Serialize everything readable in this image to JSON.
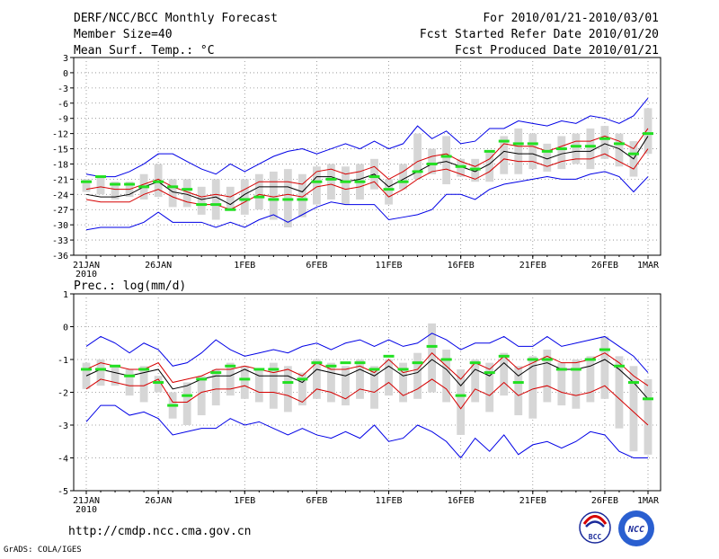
{
  "header": {
    "title": "DERF/NCC/BCC Monthly Forecast",
    "member_size": "Member Size=40",
    "variable": "Mean Surf. Temp.: °C",
    "period": "For 2010/01/21-2010/03/01",
    "start_ref": "Fcst Started Refer Date 2010/01/20",
    "produced": "Fcst Produced Date 2010/01/21"
  },
  "footer": {
    "url": "http://cmdp.ncc.cma.gov.cn",
    "grads_credit": "GrADS: COLA/IGES",
    "logo_bcc": "BCC",
    "logo_ncc": "NCC"
  },
  "colors": {
    "max_min": "#0000e6",
    "spread": "#d60000",
    "mean": "#000000",
    "box": "#d6d6d6",
    "obs": "#22e022",
    "grid": "#888888"
  },
  "chart_data": [
    {
      "id": "temperature",
      "type": "line",
      "title": "Mean Surf. Temp.: °C",
      "ylim": [
        -36,
        3
      ],
      "yticks": [
        3,
        0,
        -3,
        -6,
        -9,
        -12,
        -15,
        -18,
        -21,
        -24,
        -27,
        -30,
        -33,
        -36
      ],
      "xlim": [
        1,
        40
      ],
      "xticks": [
        {
          "day": 1,
          "label": "21JAN",
          "sub": "2010"
        },
        {
          "day": 6,
          "label": "26JAN"
        },
        {
          "day": 12,
          "label": "1FEB"
        },
        {
          "day": 17,
          "label": "6FEB"
        },
        {
          "day": 22,
          "label": "11FEB"
        },
        {
          "day": 27,
          "label": "16FEB"
        },
        {
          "day": 32,
          "label": "21FEB"
        },
        {
          "day": 37,
          "label": "26FEB"
        },
        {
          "day": 40,
          "label": "1MAR"
        }
      ],
      "x": [
        1,
        2,
        3,
        4,
        5,
        6,
        7,
        8,
        9,
        10,
        11,
        12,
        13,
        14,
        15,
        16,
        17,
        18,
        19,
        20,
        21,
        22,
        23,
        24,
        25,
        26,
        27,
        28,
        29,
        30,
        31,
        32,
        33,
        34,
        35,
        36,
        37,
        38,
        39,
        40
      ],
      "series": [
        {
          "name": "max",
          "values": [
            -20,
            -20.5,
            -20.5,
            -19.5,
            -18,
            -16,
            -16,
            -17.5,
            -19,
            -20,
            -18,
            -19.5,
            -18,
            -16.5,
            -15.5,
            -15,
            -16,
            -15,
            -14,
            -15,
            -13.5,
            -15,
            -14,
            -10.5,
            -13,
            -11.5,
            -14,
            -13.5,
            -11,
            -11,
            -9.5,
            -10,
            -10.5,
            -9.5,
            -10,
            -8.5,
            -9,
            -10,
            -8.5,
            -5
          ]
        },
        {
          "name": "upper",
          "values": [
            -23,
            -22.5,
            -23,
            -23,
            -22,
            -21,
            -22.5,
            -23.5,
            -24.5,
            -24,
            -24.5,
            -23,
            -21.5,
            -21.5,
            -21.5,
            -22,
            -19.5,
            -19,
            -20,
            -19.5,
            -18.5,
            -21,
            -19.5,
            -17.5,
            -16.5,
            -16,
            -17.5,
            -18.5,
            -17,
            -14,
            -14.5,
            -14.5,
            -15.5,
            -14.5,
            -13.5,
            -13.5,
            -12.5,
            -13.5,
            -15,
            -11
          ]
        },
        {
          "name": "mean",
          "values": [
            -24,
            -24.5,
            -24.5,
            -24,
            -22.5,
            -21.5,
            -23.5,
            -24,
            -25,
            -24.5,
            -26,
            -24,
            -22.5,
            -22.5,
            -22.5,
            -23.5,
            -20.5,
            -20.5,
            -21.5,
            -21,
            -20,
            -22.5,
            -21,
            -19.5,
            -18,
            -17.5,
            -18.5,
            -19.5,
            -18,
            -15.5,
            -16,
            -16,
            -17,
            -16,
            -15.5,
            -15.5,
            -14,
            -15,
            -17,
            -12.5
          ]
        },
        {
          "name": "lower",
          "values": [
            -25,
            -25.5,
            -25.5,
            -25.5,
            -24,
            -23,
            -24.5,
            -25.5,
            -26,
            -26,
            -27,
            -25.5,
            -24,
            -24.5,
            -24,
            -24.5,
            -22.5,
            -22,
            -23,
            -22.5,
            -21.5,
            -24.5,
            -23,
            -21,
            -19.5,
            -19,
            -20,
            -21,
            -19.5,
            -17,
            -17.5,
            -17.5,
            -18.5,
            -17.5,
            -17,
            -17,
            -16,
            -17.5,
            -19,
            -15
          ]
        },
        {
          "name": "min",
          "values": [
            -31,
            -30.5,
            -30.5,
            -30.5,
            -29.5,
            -27.5,
            -29.5,
            -29.5,
            -29.5,
            -30.5,
            -29.5,
            -30.5,
            -29,
            -28,
            -29.5,
            -28,
            -26.5,
            -25.5,
            -26,
            -26,
            -26,
            -29,
            -28.5,
            -28,
            -27,
            -24,
            -24,
            -25,
            -23,
            -22,
            -21.5,
            -21,
            -20.5,
            -21,
            -21,
            -20,
            -19.5,
            -20.5,
            -23.5,
            -20.5
          ]
        },
        {
          "name": "box_top",
          "values": [
            -21,
            -20.5,
            -21.5,
            -21.5,
            -20,
            -18,
            -21,
            -21,
            -22.5,
            -21,
            -22.5,
            -21,
            -20,
            -19.5,
            -19,
            -20,
            -18.5,
            -18,
            -18.5,
            -18,
            -17,
            -21,
            -18,
            -12,
            -15,
            -12.5,
            -17,
            -17,
            -15.5,
            -12.5,
            -11,
            -12,
            -14,
            -12.5,
            -12,
            -11,
            -10.5,
            -12,
            -13.5,
            -7
          ]
        },
        {
          "name": "box_bottom",
          "values": [
            -23.5,
            -24,
            -25,
            -24.5,
            -25,
            -24.5,
            -26.5,
            -26.5,
            -28,
            -29,
            -27,
            -28,
            -27,
            -29,
            -30.5,
            -28.5,
            -26,
            -25,
            -26,
            -25,
            -23,
            -26,
            -23,
            -21,
            -20,
            -22,
            -20.5,
            -21.5,
            -21.5,
            -20,
            -20,
            -19,
            -19.5,
            -19,
            -18,
            -19,
            -17,
            -18.5,
            -20.5,
            -16
          ]
        },
        {
          "name": "obs",
          "values": [
            -21.5,
            -20.5,
            -22,
            -22,
            -22.5,
            -21.5,
            -22.5,
            -23,
            -26,
            -26,
            -27,
            -25,
            -24.5,
            -25,
            -25,
            -25,
            -21.5,
            -21,
            -21.5,
            -21.5,
            -20.5,
            -23,
            -21.5,
            -19.5,
            -18,
            -16.5,
            -18.5,
            -19,
            -15.5,
            -13.5,
            -14,
            -14,
            -15.5,
            -15,
            -14.5,
            -14.5,
            -13,
            -14,
            -16,
            -12
          ]
        }
      ]
    },
    {
      "id": "precipitation",
      "type": "line",
      "title": "Prec.: log(mm/d)",
      "ylim": [
        -5,
        1
      ],
      "yticks": [
        1,
        0,
        -1,
        -2,
        -3,
        -4,
        -5
      ],
      "xlim": [
        1,
        40
      ],
      "xticks": [
        {
          "day": 1,
          "label": "21JAN",
          "sub": "2010"
        },
        {
          "day": 6,
          "label": "26JAN"
        },
        {
          "day": 12,
          "label": "1FEB"
        },
        {
          "day": 17,
          "label": "6FEB"
        },
        {
          "day": 22,
          "label": "11FEB"
        },
        {
          "day": 27,
          "label": "16FEB"
        },
        {
          "day": 32,
          "label": "21FEB"
        },
        {
          "day": 37,
          "label": "26FEB"
        },
        {
          "day": 40,
          "label": "1MAR"
        }
      ],
      "x": [
        1,
        2,
        3,
        4,
        5,
        6,
        7,
        8,
        9,
        10,
        11,
        12,
        13,
        14,
        15,
        16,
        17,
        18,
        19,
        20,
        21,
        22,
        23,
        24,
        25,
        26,
        27,
        28,
        29,
        30,
        31,
        32,
        33,
        34,
        35,
        36,
        37,
        38,
        39,
        40
      ],
      "series": [
        {
          "name": "max",
          "values": [
            -0.6,
            -0.3,
            -0.5,
            -0.8,
            -0.5,
            -0.7,
            -1.2,
            -1.1,
            -0.8,
            -0.4,
            -0.7,
            -0.9,
            -0.8,
            -0.7,
            -0.8,
            -0.6,
            -0.5,
            -0.7,
            -0.5,
            -0.4,
            -0.6,
            -0.4,
            -0.6,
            -0.5,
            -0.2,
            -0.4,
            -0.7,
            -0.5,
            -0.5,
            -0.3,
            -0.6,
            -0.6,
            -0.3,
            -0.6,
            -0.5,
            -0.4,
            -0.3,
            -0.6,
            -0.9,
            -1.4
          ]
        },
        {
          "name": "upper",
          "values": [
            -1.3,
            -1.1,
            -1.2,
            -1.3,
            -1.3,
            -1.1,
            -1.7,
            -1.6,
            -1.5,
            -1.3,
            -1.3,
            -1.2,
            -1.3,
            -1.4,
            -1.3,
            -1.5,
            -1.1,
            -1.3,
            -1.3,
            -1.2,
            -1.4,
            -1,
            -1.4,
            -1.3,
            -0.8,
            -1.2,
            -1.6,
            -1.1,
            -1.3,
            -0.9,
            -1.3,
            -1.1,
            -0.9,
            -1.1,
            -1.1,
            -1,
            -0.8,
            -1.1,
            -1.5,
            -1.8
          ]
        },
        {
          "name": "mean",
          "values": [
            -1.5,
            -1.3,
            -1.4,
            -1.5,
            -1.4,
            -1.3,
            -1.9,
            -1.8,
            -1.6,
            -1.5,
            -1.5,
            -1.3,
            -1.5,
            -1.5,
            -1.5,
            -1.7,
            -1.3,
            -1.4,
            -1.5,
            -1.3,
            -1.5,
            -1.2,
            -1.5,
            -1.4,
            -1,
            -1.3,
            -1.8,
            -1.3,
            -1.5,
            -1.1,
            -1.5,
            -1.2,
            -1.1,
            -1.3,
            -1.3,
            -1.2,
            -1,
            -1.3,
            -1.7,
            -2.2
          ]
        },
        {
          "name": "lower",
          "values": [
            -1.9,
            -1.6,
            -1.7,
            -1.8,
            -1.8,
            -1.6,
            -2.3,
            -2.3,
            -2,
            -1.9,
            -1.9,
            -1.8,
            -2,
            -2,
            -2.1,
            -2.3,
            -1.9,
            -2,
            -2.2,
            -1.9,
            -2,
            -1.7,
            -2.1,
            -1.9,
            -1.6,
            -1.9,
            -2.5,
            -1.9,
            -2.1,
            -1.7,
            -2.1,
            -1.9,
            -1.8,
            -2,
            -2.1,
            -2,
            -1.8,
            -2.2,
            -2.6,
            -3
          ]
        },
        {
          "name": "min",
          "values": [
            -2.9,
            -2.4,
            -2.4,
            -2.7,
            -2.6,
            -2.8,
            -3.3,
            -3.2,
            -3.1,
            -3.1,
            -2.8,
            -3,
            -2.9,
            -3.1,
            -3.3,
            -3.1,
            -3.3,
            -3.4,
            -3.2,
            -3.4,
            -3,
            -3.5,
            -3.4,
            -3,
            -3.2,
            -3.5,
            -4,
            -3.4,
            -3.8,
            -3.3,
            -3.9,
            -3.6,
            -3.5,
            -3.7,
            -3.5,
            -3.2,
            -3.3,
            -3.8,
            -4,
            -4
          ]
        },
        {
          "name": "box_top",
          "values": [
            -1.1,
            -1,
            -1.2,
            -1.3,
            -1.2,
            -1.5,
            -2,
            -1.7,
            -1.5,
            -1.3,
            -1.1,
            -1.2,
            -1.3,
            -1.1,
            -1.2,
            -1.4,
            -1,
            -1.1,
            -1.2,
            -1,
            -1.2,
            -1,
            -1.1,
            -0.8,
            0.1,
            -0.7,
            -1.3,
            -1,
            -1.1,
            -0.8,
            -1.2,
            -0.9,
            -0.7,
            -1.1,
            -1,
            -0.9,
            -0.3,
            -0.9,
            -1.2,
            -1.6
          ]
        },
        {
          "name": "box_bottom",
          "values": [
            -1.9,
            -1.8,
            -1.8,
            -2.1,
            -2.3,
            -2,
            -2.8,
            -3,
            -2.7,
            -2.4,
            -2.1,
            -2.2,
            -2.3,
            -2.5,
            -2.6,
            -2.4,
            -2.2,
            -2.3,
            -2.4,
            -2.2,
            -2.5,
            -2.1,
            -2.3,
            -2.2,
            -2,
            -2.3,
            -3.3,
            -2.3,
            -2.6,
            -2.1,
            -2.7,
            -2.8,
            -2.3,
            -2.4,
            -2.5,
            -2.3,
            -2.2,
            -3.1,
            -3.8,
            -3.9
          ]
        },
        {
          "name": "obs",
          "values": [
            -1.3,
            -1.3,
            -1.2,
            -1.5,
            -1.3,
            -1.7,
            -2.4,
            -2.1,
            -1.6,
            -1.4,
            -1.2,
            -1.6,
            -1.3,
            -1.3,
            -1.7,
            -1.6,
            -1.1,
            -1.2,
            -1.1,
            -1.1,
            -1.3,
            -0.9,
            -1.3,
            -1.1,
            -0.6,
            -1,
            -2.1,
            -1.1,
            -1.4,
            -0.9,
            -1.7,
            -1,
            -1,
            -1.3,
            -1.3,
            -1,
            -0.7,
            -1.2,
            -1.7,
            -2.2
          ]
        }
      ]
    }
  ]
}
